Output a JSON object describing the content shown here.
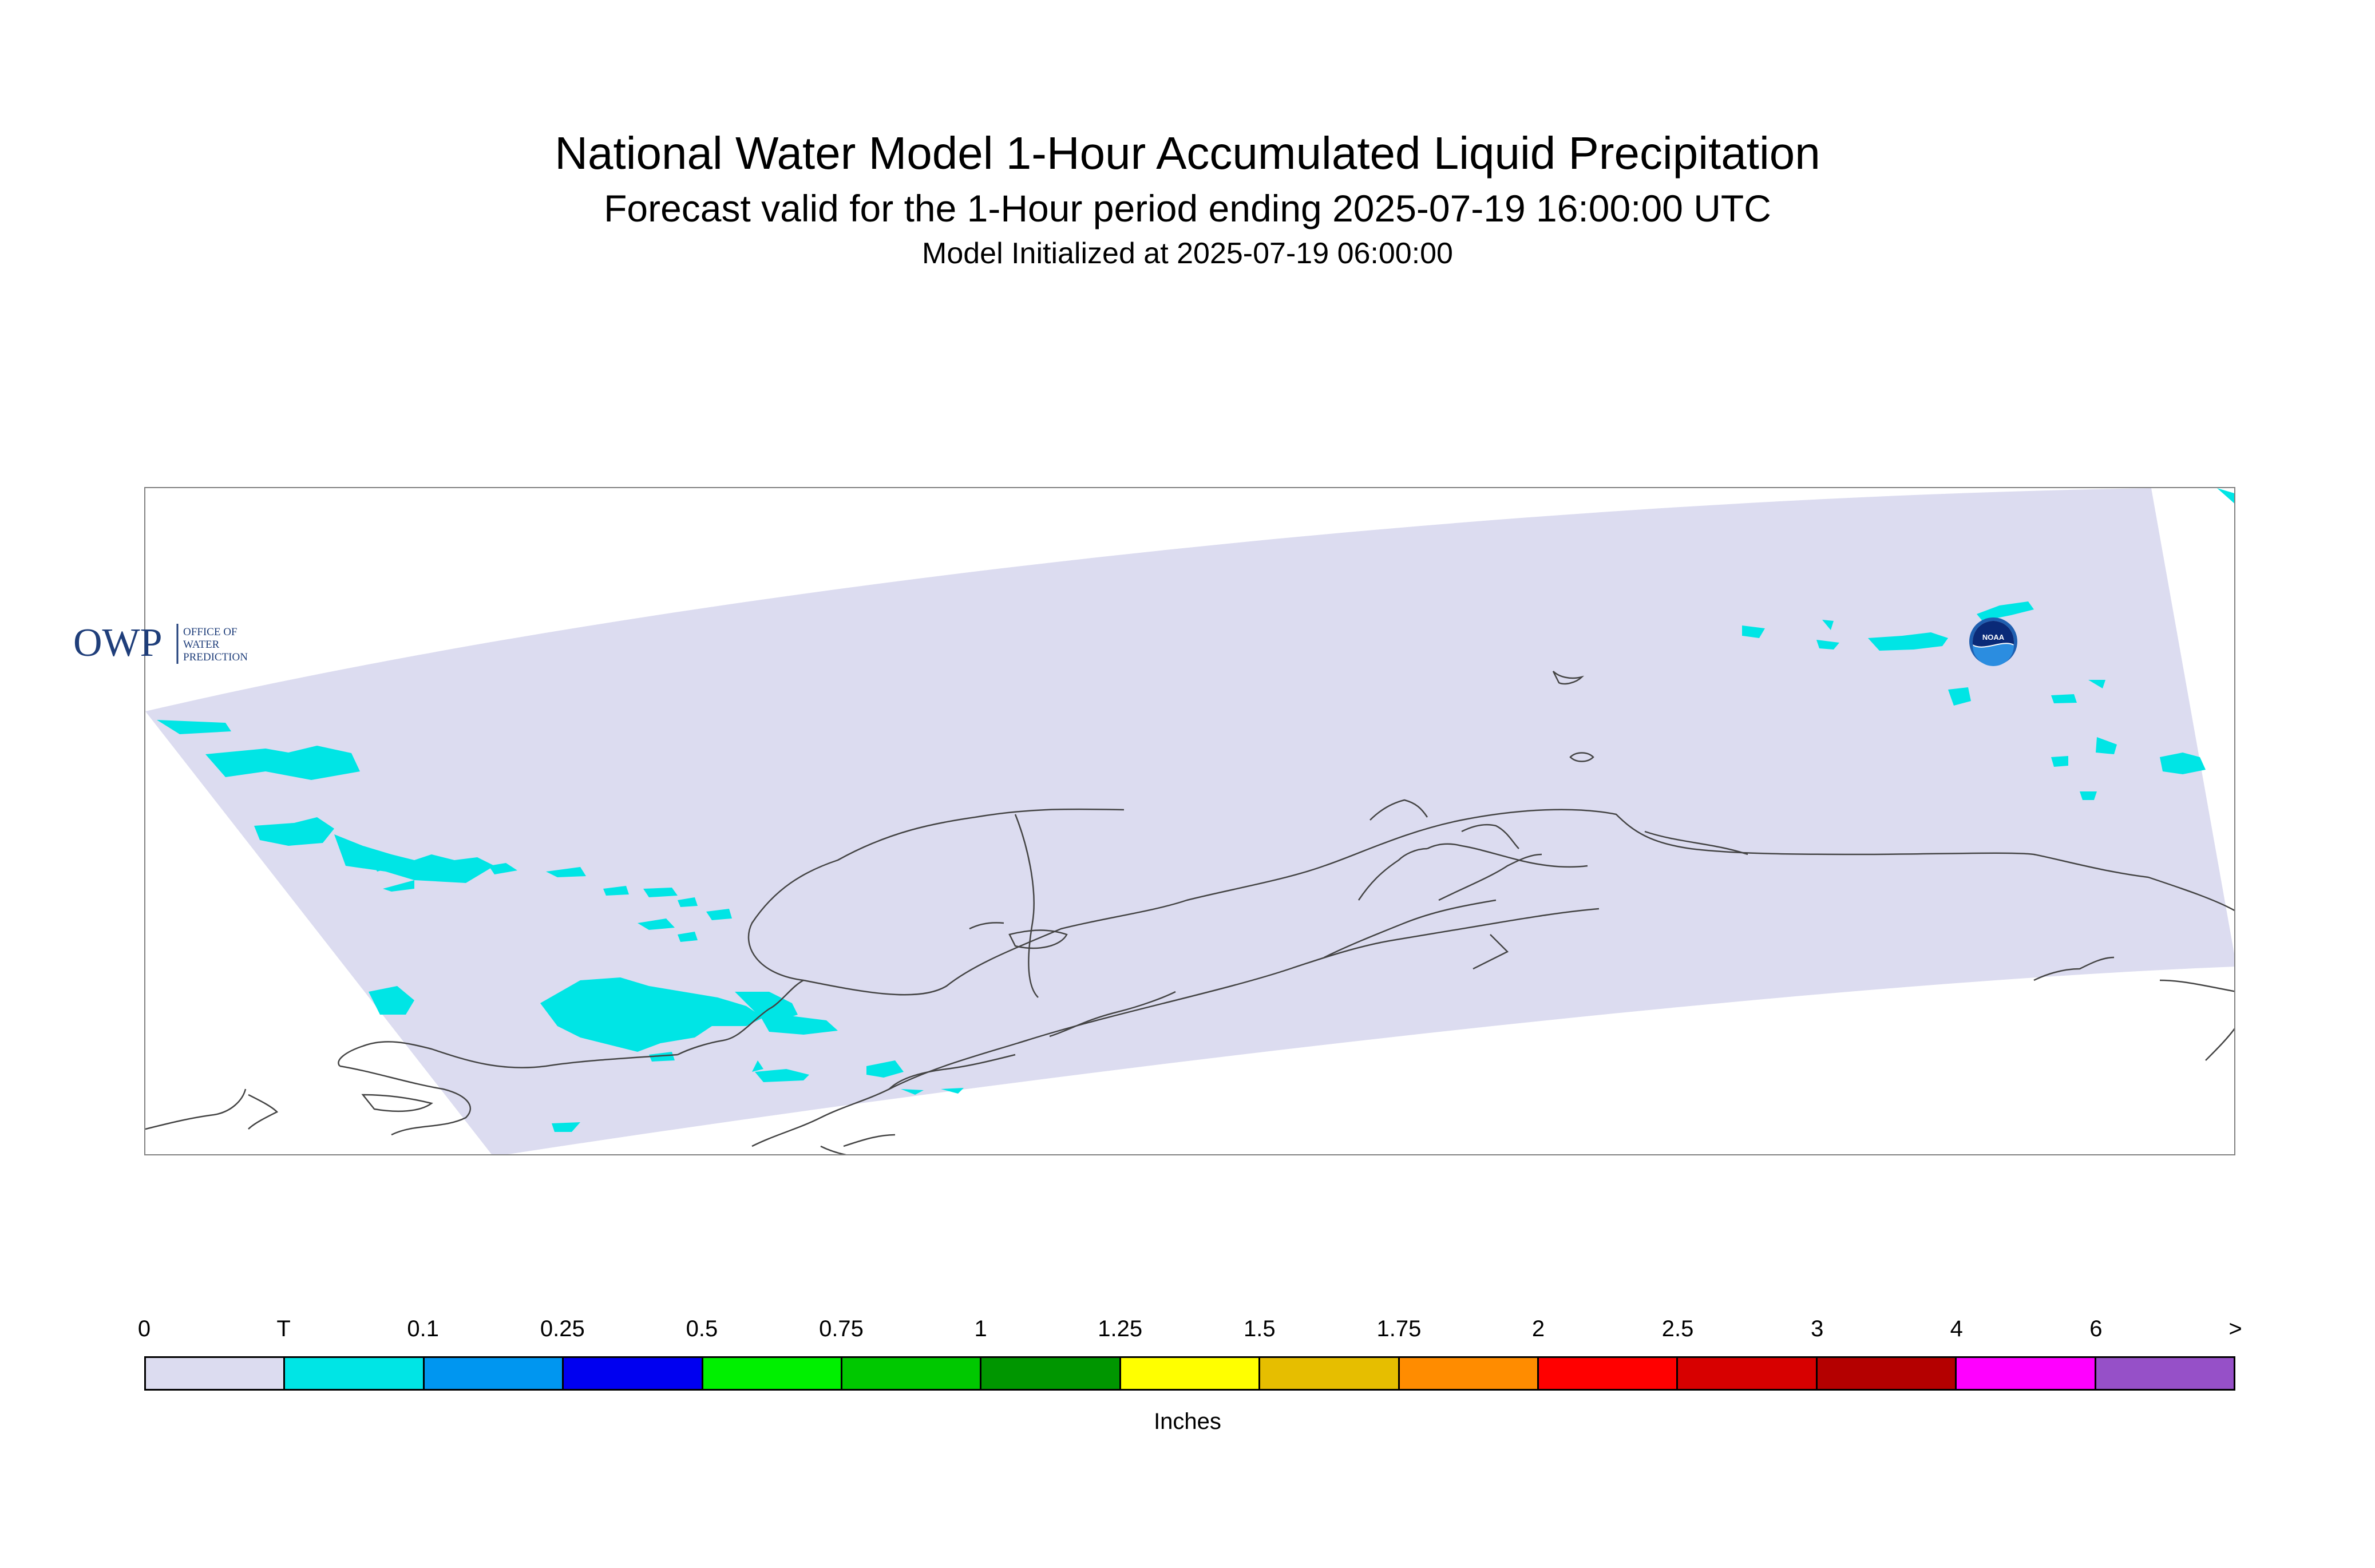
{
  "header": {
    "title": "National Water Model 1-Hour Accumulated Liquid Precipitation",
    "subtitle": "Forecast valid for the 1-Hour period ending 2025-07-19 16:00:00 UTC",
    "init_line": "Model Initialized at 2025-07-19 06:00:00"
  },
  "map": {
    "region": "Alaska",
    "domain_fill_color": "#dcdcf0",
    "coastline_color": "#444444",
    "precip_color": "#00e5e5"
  },
  "logos": {
    "owp": {
      "mark": "OWP",
      "line1": "OFFICE OF",
      "line2": "WATER",
      "line3": "PREDICTION"
    },
    "noaa": {
      "mark": "NOAA"
    }
  },
  "colorbar": {
    "tick_labels": [
      "0",
      "T",
      "0.1",
      "0.25",
      "0.5",
      "0.75",
      "1",
      "1.25",
      "1.5",
      "1.75",
      "2",
      "2.5",
      "3",
      "4",
      "6",
      ">"
    ],
    "colors": [
      "#dcdcf0",
      "#00e5e5",
      "#0096f0",
      "#0000f0",
      "#00f000",
      "#00c800",
      "#009600",
      "#ffff00",
      "#e6be00",
      "#ff8c00",
      "#ff0000",
      "#d70000",
      "#b40000",
      "#ff00ff",
      "#9650c8"
    ],
    "units_label": "Inches"
  }
}
